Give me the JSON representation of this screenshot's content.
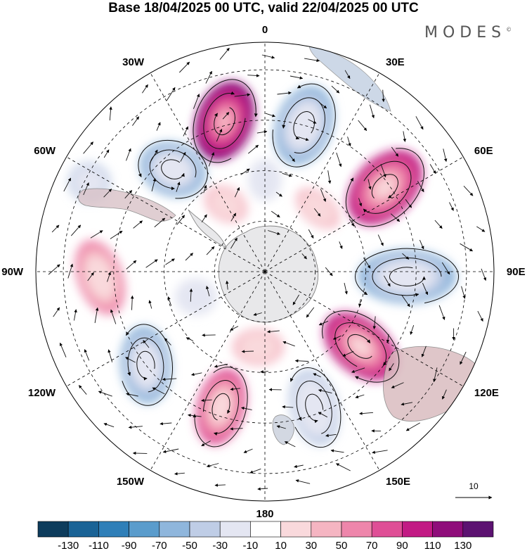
{
  "title": "Base 18/04/2025 00 UTC, valid 22/04/2025 00 UTC",
  "logo": "MODES",
  "logo_mark": "©",
  "longitude_labels": [
    "0",
    "30E",
    "60E",
    "90E",
    "120E",
    "150E",
    "180",
    "150W",
    "120W",
    "90W",
    "60W",
    "30W"
  ],
  "vector_reference": {
    "value": "10"
  },
  "colorbar": {
    "labels": [
      "-130",
      "-110",
      "-90",
      "-70",
      "-50",
      "-30",
      "-10",
      "10",
      "30",
      "50",
      "70",
      "90",
      "110",
      "130"
    ],
    "colors": [
      "#0d3c5c",
      "#1a6396",
      "#2f7fb8",
      "#5a9ccc",
      "#8fb6dc",
      "#bfcde6",
      "#e4e6f2",
      "#ffffff",
      "#f9d9dc",
      "#f5b5c2",
      "#ee86ab",
      "#df4f96",
      "#c21a84",
      "#8f0d7a",
      "#5c1271"
    ]
  },
  "anomaly_cells": [
    {
      "lon": 345,
      "r": 0.68,
      "value": 110,
      "sx": 58,
      "sy": 40,
      "rot": -70
    },
    {
      "lon": 15,
      "r": 0.66,
      "value": -70,
      "sx": 58,
      "sy": 40,
      "rot": 110
    },
    {
      "lon": 55,
      "r": 0.64,
      "value": 90,
      "sx": 62,
      "sy": 42,
      "rot": 135
    },
    {
      "lon": 92,
      "r": 0.62,
      "value": -70,
      "sx": 70,
      "sy": 38,
      "rot": 0
    },
    {
      "lon": 128,
      "r": 0.53,
      "value": 90,
      "sx": 60,
      "sy": 38,
      "rot": 40
    },
    {
      "lon": 160,
      "r": 0.63,
      "value": -50,
      "sx": 55,
      "sy": 34,
      "rot": 75
    },
    {
      "lon": 198,
      "r": 0.62,
      "value": 70,
      "sx": 55,
      "sy": 34,
      "rot": 105
    },
    {
      "lon": 232,
      "r": 0.66,
      "value": -70,
      "sx": 55,
      "sy": 36,
      "rot": 85
    },
    {
      "lon": 268,
      "r": 0.72,
      "value": 50,
      "sx": 55,
      "sy": 32,
      "rot": 70
    },
    {
      "lon": 297,
      "r": 0.86,
      "value": -50,
      "sx": 30,
      "sy": 28,
      "rot": 0
    },
    {
      "lon": 318,
      "r": 0.6,
      "value": -70,
      "sx": 48,
      "sy": 38,
      "rot": 20
    },
    {
      "lon": 0,
      "r": 0.4,
      "value": -30,
      "sx": 24,
      "sy": 30,
      "rot": 0
    },
    {
      "lon": 330,
      "r": 0.34,
      "value": 30,
      "sx": 32,
      "sy": 24,
      "rot": 30
    },
    {
      "lon": 40,
      "r": 0.36,
      "value": 30,
      "sx": 36,
      "sy": 22,
      "rot": 40
    },
    {
      "lon": 185,
      "r": 0.33,
      "value": 30,
      "sx": 26,
      "sy": 36,
      "rot": 90
    },
    {
      "lon": 250,
      "r": 0.32,
      "value": -10,
      "sx": 30,
      "sy": 26,
      "rot": 0
    }
  ],
  "vortices": [
    {
      "lon": 345,
      "r": 0.68,
      "dir": 1
    },
    {
      "lon": 15,
      "r": 0.66,
      "dir": -1
    },
    {
      "lon": 55,
      "r": 0.64,
      "dir": 1
    },
    {
      "lon": 92,
      "r": 0.62,
      "dir": -1
    },
    {
      "lon": 128,
      "r": 0.53,
      "dir": 1
    },
    {
      "lon": 160,
      "r": 0.63,
      "dir": -1
    },
    {
      "lon": 198,
      "r": 0.62,
      "dir": 1
    },
    {
      "lon": 232,
      "r": 0.66,
      "dir": -1
    },
    {
      "lon": 318,
      "r": 0.6,
      "dir": -1
    }
  ]
}
